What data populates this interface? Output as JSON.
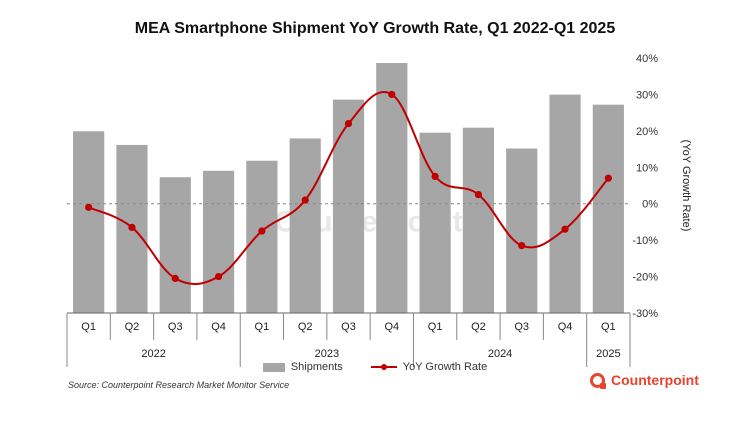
{
  "chart_data": {
    "type": "bar",
    "title": "MEA Smartphone Shipment YoY Growth Rate, Q1 2022-Q1 2025",
    "categories": [
      "Q1",
      "Q2",
      "Q3",
      "Q4",
      "Q1",
      "Q2",
      "Q3",
      "Q4",
      "Q1",
      "Q2",
      "Q3",
      "Q4",
      "Q1"
    ],
    "years": [
      {
        "label": "2022",
        "span": 4
      },
      {
        "label": "2023",
        "span": 4
      },
      {
        "label": "2024",
        "span": 4
      },
      {
        "label": "2025",
        "span": 1
      }
    ],
    "series": [
      {
        "name": "Shipments",
        "type": "bar",
        "axis": "left",
        "color": "#a6a6a6",
        "values": [
          25.3,
          23.4,
          18.9,
          19.8,
          21.2,
          24.3,
          29.7,
          34.8,
          25.1,
          25.8,
          22.9,
          30.4,
          29.0
        ]
      },
      {
        "name": "YoY Growth Rate",
        "type": "line",
        "axis": "right",
        "color": "#c00000",
        "values": [
          -1,
          -6.5,
          -20.5,
          -20,
          -7.5,
          1,
          22,
          30,
          7.5,
          2.5,
          -11.5,
          -7,
          7
        ]
      }
    ],
    "y_left_range": [
      0,
      35.5
    ],
    "y_right": {
      "min": -30,
      "max": 40,
      "step": 10,
      "suffix": "%",
      "label": "(YoY Growth Rate)"
    },
    "watermark": "Counterpoint"
  },
  "legend": {
    "bars": "Shipments",
    "line": "YoY Growth Rate"
  },
  "source": "Source: Counterpoint Research Market Monitor Service",
  "brand": "Counterpoint"
}
